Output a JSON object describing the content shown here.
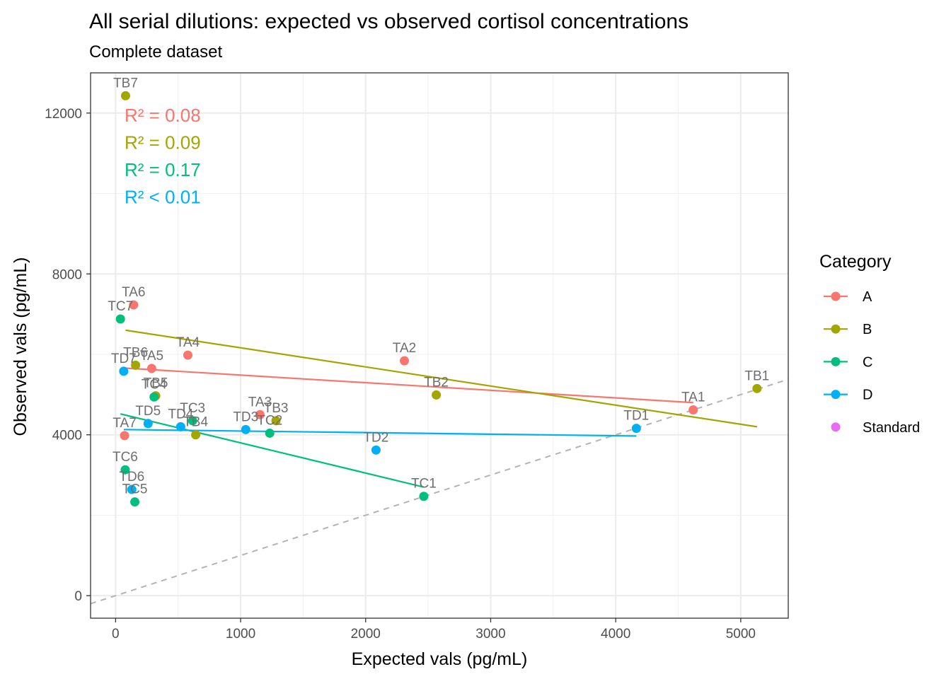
{
  "chart_data": {
    "type": "scatter",
    "title": "All serial dilutions: expected vs observed cortisol concentrations",
    "subtitle": "Complete dataset",
    "xlabel": "Expected vals (pg/mL)",
    "ylabel": "Observed vals (pg/mL)",
    "xlim": [
      -200,
      5380
    ],
    "ylim": [
      -560,
      13000
    ],
    "x_ticks": [
      0,
      1000,
      2000,
      3000,
      4000,
      5000
    ],
    "x_tick_labels": [
      "0",
      "1000",
      "2000",
      "3000",
      "4000",
      "5000"
    ],
    "y_ticks": [
      0,
      4000,
      8000,
      12000
    ],
    "y_tick_labels": [
      "0",
      "4000",
      "8000",
      "12000"
    ],
    "grid": true,
    "legend": {
      "title": "Category",
      "position": "right",
      "entries": [
        {
          "label": "A",
          "color": "#F8766D",
          "line": true
        },
        {
          "label": "B",
          "color": "#A3A500",
          "line": true
        },
        {
          "label": "C",
          "color": "#00BF7D",
          "line": true
        },
        {
          "label": "D",
          "color": "#00B0F6",
          "line": true
        },
        {
          "label": "Standard",
          "color": "#E76BF3",
          "line": false
        }
      ]
    },
    "series": [
      {
        "name": "A",
        "color": "#F8766D",
        "points": [
          {
            "label": "TA1",
            "x": 4620,
            "y": 4620
          },
          {
            "label": "TA2",
            "x": 2310,
            "y": 5840
          },
          {
            "label": "TA3",
            "x": 1155,
            "y": 4500
          },
          {
            "label": "TA4",
            "x": 578,
            "y": 5980
          },
          {
            "label": "TA5",
            "x": 289,
            "y": 5650
          },
          {
            "label": "TA6",
            "x": 144,
            "y": 7230
          },
          {
            "label": "TA7",
            "x": 72,
            "y": 3980
          }
        ],
        "fit": {
          "x": [
            72,
            4620
          ],
          "y": [
            5660,
            4800
          ]
        },
        "r2_text": "R² = 0.08"
      },
      {
        "name": "B",
        "color": "#A3A500",
        "points": [
          {
            "label": "TB1",
            "x": 5130,
            "y": 5150
          },
          {
            "label": "TB2",
            "x": 2565,
            "y": 4990
          },
          {
            "label": "TB3",
            "x": 1283,
            "y": 4350
          },
          {
            "label": "TB4",
            "x": 641,
            "y": 4000
          },
          {
            "label": "TB5",
            "x": 321,
            "y": 4970
          },
          {
            "label": "TB6",
            "x": 160,
            "y": 5730
          },
          {
            "label": "TB7",
            "x": 80,
            "y": 12430
          }
        ],
        "fit": {
          "x": [
            80,
            5130
          ],
          "y": [
            6600,
            4200
          ]
        },
        "r2_text": "R² = 0.09"
      },
      {
        "name": "C",
        "color": "#00BF7D",
        "points": [
          {
            "label": "TC1",
            "x": 2465,
            "y": 2470
          },
          {
            "label": "TC2",
            "x": 1233,
            "y": 4040
          },
          {
            "label": "TC3",
            "x": 616,
            "y": 4350
          },
          {
            "label": "TC4",
            "x": 308,
            "y": 4940
          },
          {
            "label": "TC5",
            "x": 154,
            "y": 2330
          },
          {
            "label": "TC6",
            "x": 77,
            "y": 3130
          },
          {
            "label": "TC7",
            "x": 39,
            "y": 6880
          }
        ],
        "fit": {
          "x": [
            39,
            2465
          ],
          "y": [
            4520,
            2700
          ]
        },
        "r2_text": "R² = 0.17"
      },
      {
        "name": "D",
        "color": "#00B0F6",
        "points": [
          {
            "label": "TD1",
            "x": 4165,
            "y": 4160
          },
          {
            "label": "TD2",
            "x": 2083,
            "y": 3620
          },
          {
            "label": "TD3",
            "x": 1041,
            "y": 4130
          },
          {
            "label": "TD4",
            "x": 521,
            "y": 4200
          },
          {
            "label": "TD5",
            "x": 260,
            "y": 4280
          },
          {
            "label": "TD6",
            "x": 130,
            "y": 2640
          },
          {
            "label": "TD7",
            "x": 65,
            "y": 5580
          }
        ],
        "fit": {
          "x": [
            65,
            4165
          ],
          "y": [
            4130,
            3970
          ]
        },
        "r2_text": "R² < 0.01"
      }
    ],
    "identity_line": {
      "x": [
        -200,
        5380
      ],
      "y": [
        -200,
        5380
      ],
      "color": "#B3B3B3",
      "style": "dashed"
    }
  }
}
